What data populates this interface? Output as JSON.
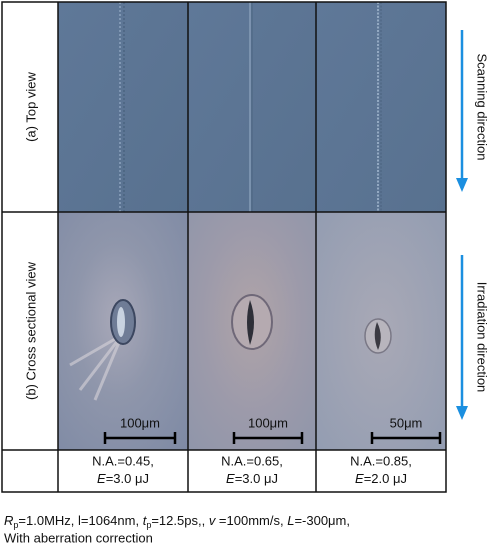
{
  "row_labels": [
    "(a) Top view",
    "(b) Cross sectional view"
  ],
  "side_labels": [
    "Scanning  direction",
    "Irradiation  direction"
  ],
  "panels": [
    {
      "scale": "100μm",
      "na": "N.A.=0.45,",
      "e_symbol": "E",
      "energy": "=3.0 μJ"
    },
    {
      "scale": "100μm",
      "na": "N.A.=0.65,",
      "e_symbol": "E",
      "energy": "=3.0 μJ"
    },
    {
      "scale": "50μm",
      "na": "N.A.=0.85,",
      "e_symbol": "E",
      "energy": "=2.0 μJ"
    }
  ],
  "footer": {
    "line1": [
      "R",
      "p",
      "=1.0MHz, l=1064nm, ",
      "t",
      "p",
      "=12.5ps,, ",
      "v",
      " =100mm/s, ",
      "L",
      "=-300μm,"
    ],
    "line2": "With aberration correction"
  }
}
